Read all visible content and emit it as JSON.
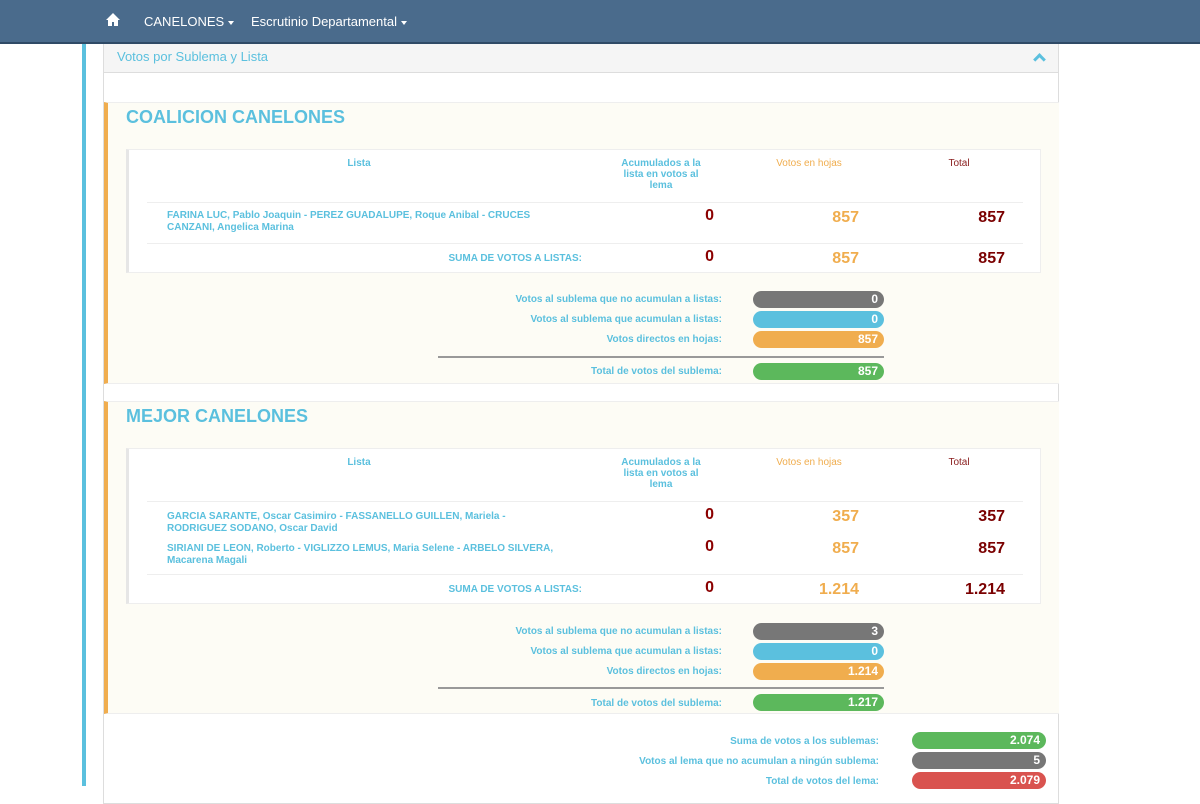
{
  "nav": {
    "home_icon": "home-icon",
    "dept": "CANELONES",
    "menu": "Escrutinio Departamental"
  },
  "panel": {
    "title": "Votos por Sublema y Lista"
  },
  "colors": {
    "gray": "#777777",
    "blue": "#5bc0de",
    "orange": "#f0ad4e",
    "green": "#5cb85c",
    "red": "#d9534f"
  },
  "headers": {
    "lista": "Lista",
    "acum": "Acumulados a la lista en votos al lema",
    "hojas": "Votos en hojas",
    "total": "Total"
  },
  "labels": {
    "suma": "SUMA DE VOTOS A LISTAS:",
    "no_acum": "Votos al sublema que no acumulan a listas:",
    "acum": "Votos al sublema que acumulan a listas:",
    "directos": "Votos directos en hojas:",
    "total_sub": "Total de votos del sublema:"
  },
  "sublemas": [
    {
      "name": "COALICION CANELONES",
      "listas": [
        {
          "name": "FARINA LUC, Pablo Joaquin - PEREZ GUADALUPE, Roque Anibal - CRUCES CANZANI, Angelica Marina",
          "acum": "0",
          "hojas": "857",
          "total": "857"
        }
      ],
      "suma": {
        "acum": "0",
        "hojas": "857",
        "total": "857"
      },
      "no_acum": "0",
      "acum": "0",
      "directos": "857",
      "total": "857"
    },
    {
      "name": "MEJOR CANELONES",
      "listas": [
        {
          "name": "GARCIA SARANTE, Oscar Casimiro - FASSANELLO GUILLEN, Mariela - RODRIGUEZ SODANO, Oscar David",
          "acum": "0",
          "hojas": "357",
          "total": "357"
        },
        {
          "name": "SIRIANI DE LEON, Roberto - VIGLIZZO LEMUS, Maria Selene - ARBELO SILVERA, Macarena Magali",
          "acum": "0",
          "hojas": "857",
          "total": "857"
        }
      ],
      "suma": {
        "acum": "0",
        "hojas": "1.214",
        "total": "1.214"
      },
      "no_acum": "3",
      "acum": "0",
      "directos": "1.214",
      "total": "1.217"
    }
  ],
  "lema": {
    "suma_label": "Suma de votos a los sublemas:",
    "suma": "2.074",
    "no_acum_label": "Votos al lema que no acumulan a ningún sublema:",
    "no_acum": "5",
    "total_label": "Total de votos del lema:",
    "total": "2.079"
  }
}
